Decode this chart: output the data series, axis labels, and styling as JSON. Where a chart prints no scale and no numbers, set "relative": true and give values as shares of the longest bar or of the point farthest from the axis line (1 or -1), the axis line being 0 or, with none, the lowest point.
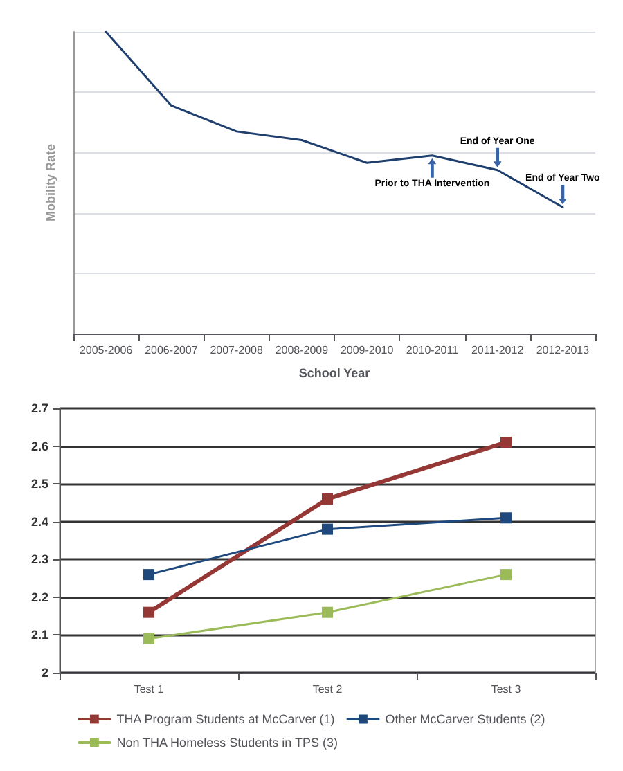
{
  "chart_data": [
    {
      "type": "line",
      "relative": true,
      "xlabel": "School Year",
      "ylabel": "Mobility Rate",
      "categories": [
        "2005-2006",
        "2006-2007",
        "2007-2008",
        "2008-2009",
        "2009-2010",
        "2010-2011",
        "2011-2012",
        "2012-2013"
      ],
      "series": [
        {
          "color": "#1f3f6e",
          "values": [
            1,
            0.756,
            0.67,
            0.641,
            0.566,
            0.59,
            0.542,
            0.419
          ]
        }
      ],
      "grid": "y",
      "marker": "none",
      "line_style": "solid",
      "legend": false,
      "annotations": [
        {
          "text": "Prior to THA Intervention",
          "x": "2010-2011",
          "y": 0.59
        },
        {
          "text": "End of Year One",
          "x": "2011-2012",
          "y": 0.542
        },
        {
          "text": "End of Year Two",
          "x": "2012-2013",
          "y": 0.419
        }
      ]
    },
    {
      "type": "line",
      "categories": [
        "Test 1",
        "Test 2",
        "Test 3"
      ],
      "ylim": [
        2,
        2.7
      ],
      "yticks": [
        2,
        2.1,
        2.2,
        2.3,
        2.4,
        2.5,
        2.6,
        2.7
      ],
      "series": [
        {
          "name": "THA Program Students at McCarver (1)",
          "color": "#953735",
          "values": [
            2.16,
            2.46,
            2.61
          ]
        },
        {
          "name": "Other McCarver Students (2)",
          "color": "#1f497d",
          "values": [
            2.26,
            2.38,
            2.41
          ]
        },
        {
          "name": "Non THA Homeless Students in TPS (3)",
          "color": "#9bbb59",
          "values": [
            2.09,
            2.16,
            2.26
          ]
        }
      ],
      "grid": "y",
      "marker": "square",
      "line_style": "solid",
      "legend": "bottom"
    }
  ]
}
